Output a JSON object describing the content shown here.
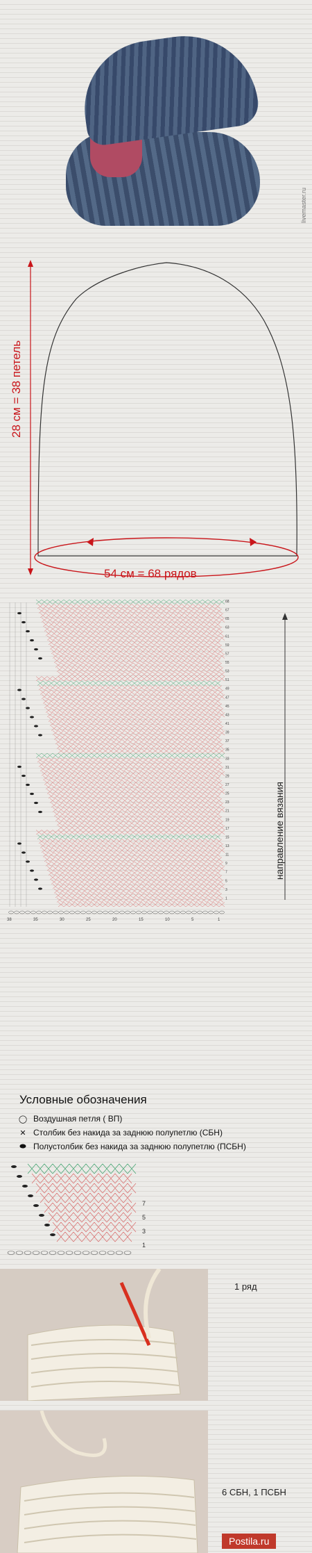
{
  "photo": {
    "watermark": "livemaster.ru"
  },
  "pattern": {
    "height_label": "28 см = 38 петель",
    "width_label": "54 см = 68 рядов"
  },
  "chart": {
    "direction_label": "направление вязания",
    "row_numbers": [
      "68",
      "67",
      "65",
      "63",
      "61",
      "59",
      "57",
      "55",
      "53",
      "51",
      "49",
      "47",
      "45",
      "43",
      "41",
      "39",
      "37",
      "35",
      "33",
      "31",
      "29",
      "27",
      "25",
      "23",
      "21",
      "19",
      "17",
      "15",
      "13",
      "11",
      "9",
      "7",
      "5",
      "3",
      "1"
    ],
    "col_numbers": [
      "38",
      "35",
      "30",
      "25",
      "20",
      "15",
      "10",
      "5",
      "1"
    ],
    "colors": {
      "ch": "#3aa06a",
      "sc": "#d96a6a",
      "dark": "#222222"
    }
  },
  "legend": {
    "title": "Условные обозначения",
    "items": [
      {
        "symbol": "chain-symbol",
        "text": "Воздушная петля ( ВП)"
      },
      {
        "symbol": "sc-symbol",
        "text": "Столбик без накида за заднюю полупетлю (СБН)"
      },
      {
        "symbol": "hdc-symbol",
        "text": "Полустолбик без накида за заднюю полупетлю (ПСБН)"
      }
    ],
    "small_chart_rows": [
      "7",
      "5",
      "3",
      "1"
    ]
  },
  "steps": [
    {
      "caption": "1 ряд"
    },
    {
      "caption": "6 СБН, 1 ПСБН"
    }
  ],
  "footer": {
    "brand": "Postila.ru"
  }
}
